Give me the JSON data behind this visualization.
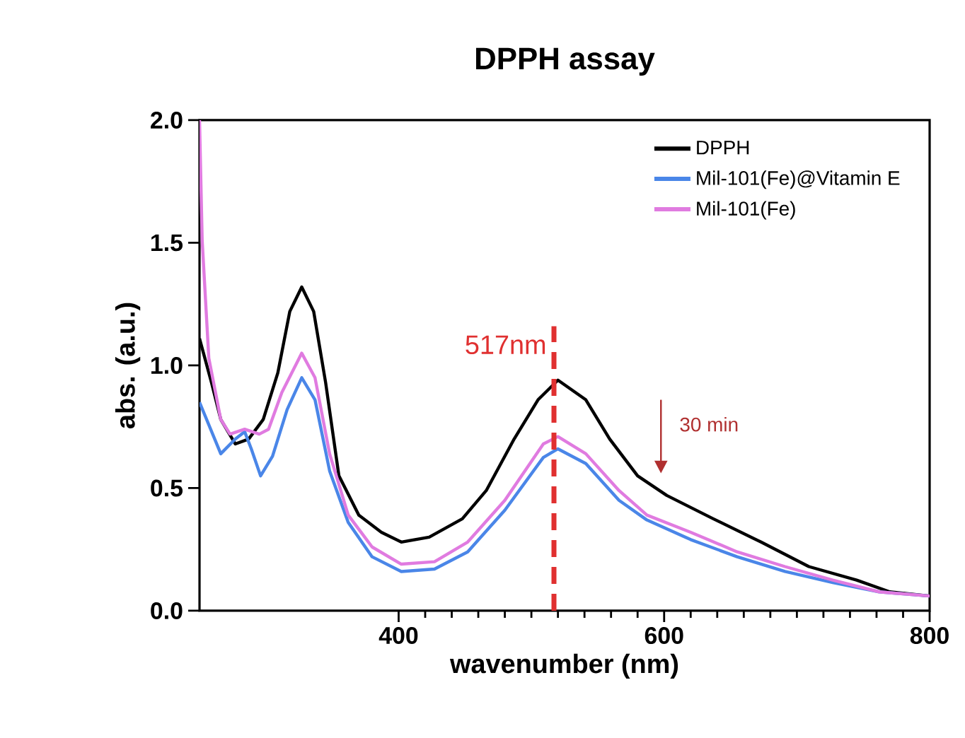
{
  "chart_data": {
    "type": "line",
    "title": "DPPH assay",
    "xlabel": "wavenumber (nm)",
    "ylabel": "abs. (a.u.)",
    "xlim": [
      250,
      800
    ],
    "ylim": [
      0,
      2.0
    ],
    "xticks": [
      400,
      600,
      800
    ],
    "yticks": [
      {
        "value": 0,
        "label": "0.0"
      },
      {
        "value": 0.5,
        "label": "0.5"
      },
      {
        "value": 1.0,
        "label": "1.0"
      },
      {
        "value": 1.5,
        "label": "1.5"
      },
      {
        "value": 2.0,
        "label": "2.0"
      }
    ],
    "grid": false,
    "legend": "top right",
    "marker": "none",
    "line_style": "solid",
    "series": [
      {
        "name": "DPPH",
        "color": "#000000",
        "x": [
          250,
          259,
          266,
          277,
          287,
          298,
          309,
          318,
          327,
          336,
          345,
          355,
          370,
          387,
          402,
          423,
          448,
          466,
          487,
          505,
          520,
          541,
          559,
          580,
          602,
          637,
          673,
          709,
          745,
          770,
          800
        ],
        "values": [
          1.11,
          0.93,
          0.78,
          0.68,
          0.7,
          0.78,
          0.97,
          1.22,
          1.32,
          1.22,
          0.93,
          0.55,
          0.39,
          0.32,
          0.28,
          0.3,
          0.375,
          0.49,
          0.7,
          0.86,
          0.94,
          0.86,
          0.7,
          0.55,
          0.47,
          0.375,
          0.28,
          0.18,
          0.125,
          0.077,
          0.06
        ]
      },
      {
        "name": "Mil-101(Fe)@Vitamin E",
        "color": "#4a86e8",
        "x": [
          250,
          266,
          277,
          284,
          289,
          296,
          305,
          316,
          327,
          337,
          348,
          362,
          380,
          402,
          427,
          452,
          480,
          509,
          520,
          541,
          566,
          587,
          620,
          655,
          691,
          727,
          762,
          800
        ],
        "values": [
          0.85,
          0.64,
          0.7,
          0.73,
          0.66,
          0.55,
          0.63,
          0.82,
          0.95,
          0.86,
          0.57,
          0.36,
          0.22,
          0.16,
          0.17,
          0.24,
          0.41,
          0.625,
          0.66,
          0.6,
          0.45,
          0.37,
          0.29,
          0.22,
          0.16,
          0.115,
          0.077,
          0.06
        ]
      },
      {
        "name": "Mil-101(Fe)",
        "color": "#e07be0",
        "x": [
          250,
          252,
          257,
          266,
          273,
          284,
          295,
          302,
          312,
          327,
          337,
          348,
          362,
          380,
          402,
          427,
          452,
          480,
          509,
          520,
          541,
          566,
          587,
          620,
          655,
          691,
          727,
          762,
          800
        ],
        "values": [
          2.0,
          1.51,
          1.03,
          0.78,
          0.72,
          0.74,
          0.72,
          0.74,
          0.89,
          1.05,
          0.95,
          0.64,
          0.39,
          0.26,
          0.19,
          0.2,
          0.28,
          0.45,
          0.68,
          0.71,
          0.64,
          0.49,
          0.39,
          0.32,
          0.24,
          0.18,
          0.125,
          0.077,
          0.06
        ]
      }
    ],
    "ref_lines": [
      {
        "axis": "x",
        "value": 517,
        "label": "517nm",
        "color": "#e03030",
        "line_style": "dashed"
      }
    ],
    "annotations": [
      "30 min"
    ]
  }
}
